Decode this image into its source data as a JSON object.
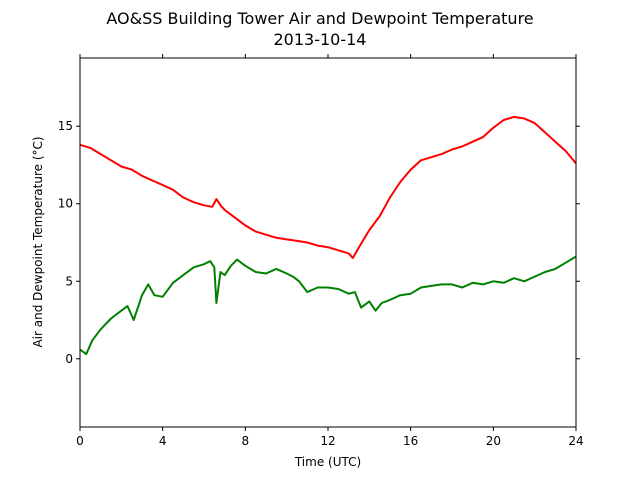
{
  "chart_data": {
    "type": "line",
    "title": "AO&SS Building Tower Air and Dewpoint Temperature",
    "subtitle": "2013-10-14",
    "xlabel": "Time (UTC)",
    "ylabel": "Air and Dewpoint Temperature (°C)",
    "xlim": [
      0,
      24
    ],
    "ylim": [
      -4.4,
      19.4
    ],
    "xticks": [
      0,
      4,
      8,
      12,
      16,
      20,
      24
    ],
    "yticks": [
      0,
      5,
      10,
      15
    ],
    "grid": false,
    "legend": "none",
    "series": [
      {
        "color": "#ff0000",
        "x": [
          0,
          0.5,
          1,
          1.5,
          2,
          2.5,
          3,
          3.5,
          4,
          4.5,
          5,
          5.5,
          6,
          6.4,
          6.6,
          6.8,
          7,
          7.5,
          8,
          8.5,
          9,
          9.5,
          10,
          10.5,
          11,
          11.5,
          12,
          12.5,
          13,
          13.2,
          13.5,
          14,
          14.5,
          15,
          15.5,
          16,
          16.5,
          17,
          17.5,
          18,
          18.5,
          19,
          19.5,
          20,
          20.5,
          21,
          21.5,
          22,
          22.5,
          23,
          23.5,
          24
        ],
        "y": [
          13.8,
          13.6,
          13.2,
          12.8,
          12.4,
          12.2,
          11.8,
          11.5,
          11.2,
          10.9,
          10.4,
          10.1,
          9.9,
          9.8,
          10.3,
          9.9,
          9.6,
          9.1,
          8.6,
          8.2,
          8.0,
          7.8,
          7.7,
          7.6,
          7.5,
          7.3,
          7.2,
          7.0,
          6.8,
          6.5,
          7.2,
          8.3,
          9.2,
          10.4,
          11.4,
          12.2,
          12.8,
          13.0,
          13.2,
          13.5,
          13.7,
          14.0,
          14.3,
          14.9,
          15.4,
          15.6,
          15.5,
          15.2,
          14.6,
          14.0,
          13.4,
          12.6
        ]
      },
      {
        "color": "#008000",
        "x": [
          0,
          0.3,
          0.6,
          1,
          1.5,
          2,
          2.3,
          2.6,
          3,
          3.3,
          3.6,
          4,
          4.5,
          5,
          5.5,
          6,
          6.3,
          6.5,
          6.6,
          6.8,
          7,
          7.3,
          7.6,
          8,
          8.5,
          9,
          9.5,
          10,
          10.3,
          10.6,
          11,
          11.5,
          12,
          12.5,
          13,
          13.3,
          13.6,
          14,
          14.3,
          14.6,
          15,
          15.5,
          16,
          16.5,
          17,
          17.5,
          18,
          18.5,
          19,
          19.5,
          20,
          20.5,
          21,
          21.5,
          22,
          22.5,
          23,
          23.5,
          24
        ],
        "y": [
          0.6,
          0.3,
          1.2,
          1.9,
          2.6,
          3.1,
          3.4,
          2.5,
          4.1,
          4.8,
          4.1,
          4.0,
          4.9,
          5.4,
          5.9,
          6.1,
          6.3,
          5.9,
          3.6,
          5.6,
          5.4,
          6.0,
          6.4,
          6.0,
          5.6,
          5.5,
          5.8,
          5.5,
          5.3,
          5.0,
          4.3,
          4.6,
          4.6,
          4.5,
          4.2,
          4.3,
          3.3,
          3.7,
          3.1,
          3.6,
          3.8,
          4.1,
          4.2,
          4.6,
          4.7,
          4.8,
          4.8,
          4.6,
          4.9,
          4.8,
          5.0,
          4.9,
          5.2,
          5.0,
          5.3,
          5.6,
          5.8,
          6.2,
          6.6
        ]
      }
    ]
  }
}
